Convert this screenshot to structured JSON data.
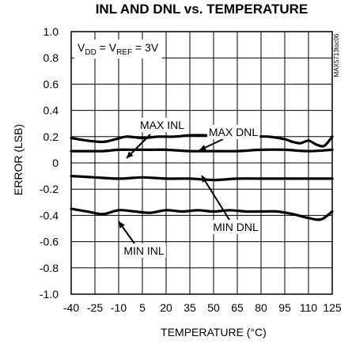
{
  "chart_data": {
    "type": "line",
    "title": "INL AND DNL vs. TEMPERATURE",
    "xlabel": "TEMPERATURE (°C)",
    "ylabel": "ERROR (LSB)",
    "xlim": [
      -40,
      125
    ],
    "ylim": [
      -1.0,
      1.0
    ],
    "xticks": [
      -40,
      -25,
      -10,
      5,
      20,
      35,
      50,
      65,
      80,
      95,
      110,
      125
    ],
    "xtick_labels": [
      "-40",
      "-25",
      "-10",
      "5",
      "20",
      "35",
      "50",
      "65",
      "80",
      "95",
      "110",
      "125"
    ],
    "yticks": [
      1.0,
      0.8,
      0.6,
      0.4,
      0.2,
      0,
      -0.2,
      -0.4,
      -0.6,
      -0.8,
      -1.0
    ],
    "ytick_labels": [
      "1.0",
      "0.8",
      "0.6",
      "0.4",
      "0.2",
      "0",
      "-0.2",
      "-0.4",
      "-0.6",
      "-0.8",
      "-1.0"
    ],
    "grid": true,
    "condition": {
      "main": "V",
      "sub1": "DD",
      "mid": " = V",
      "sub2": "REF",
      "tail": " = 3V"
    },
    "figure_code": "MAX5713toc06",
    "series": [
      {
        "name": "MAX INL",
        "x": [
          -40,
          -30,
          -20,
          -12,
          -5,
          5,
          15,
          25,
          35,
          45,
          55,
          65,
          75,
          85,
          95,
          100,
          105,
          110,
          115,
          120,
          125
        ],
        "values": [
          0.19,
          0.17,
          0.16,
          0.18,
          0.2,
          0.19,
          0.2,
          0.2,
          0.21,
          0.21,
          0.2,
          0.2,
          0.2,
          0.2,
          0.18,
          0.16,
          0.15,
          0.17,
          0.14,
          0.13,
          0.2
        ]
      },
      {
        "name": "MAX DNL",
        "x": [
          -40,
          -30,
          -20,
          -10,
          0,
          10,
          20,
          35,
          50,
          65,
          80,
          95,
          110,
          125
        ],
        "values": [
          0.09,
          0.09,
          0.09,
          0.1,
          0.1,
          0.1,
          0.1,
          0.09,
          0.09,
          0.09,
          0.1,
          0.1,
          0.09,
          0.1
        ]
      },
      {
        "name": "MIN DNL",
        "x": [
          -40,
          -25,
          -10,
          5,
          20,
          35,
          50,
          65,
          80,
          95,
          110,
          125
        ],
        "values": [
          -0.1,
          -0.11,
          -0.12,
          -0.11,
          -0.12,
          -0.12,
          -0.13,
          -0.12,
          -0.12,
          -0.12,
          -0.12,
          -0.12
        ]
      },
      {
        "name": "MIN INL",
        "x": [
          -40,
          -30,
          -20,
          -10,
          0,
          10,
          20,
          30,
          40,
          50,
          60,
          70,
          80,
          90,
          100,
          110,
          118,
          125
        ],
        "values": [
          -0.35,
          -0.37,
          -0.39,
          -0.36,
          -0.37,
          -0.38,
          -0.36,
          -0.37,
          -0.36,
          -0.37,
          -0.36,
          -0.37,
          -0.37,
          -0.37,
          -0.39,
          -0.42,
          -0.43,
          -0.37
        ]
      }
    ],
    "annotations": [
      {
        "text": "MAX INL",
        "series": "MAX INL"
      },
      {
        "text": "MAX DNL",
        "series": "MAX DNL"
      },
      {
        "text": "MIN DNL",
        "series": "MIN DNL"
      },
      {
        "text": "MIN INL",
        "series": "MIN INL"
      }
    ]
  }
}
